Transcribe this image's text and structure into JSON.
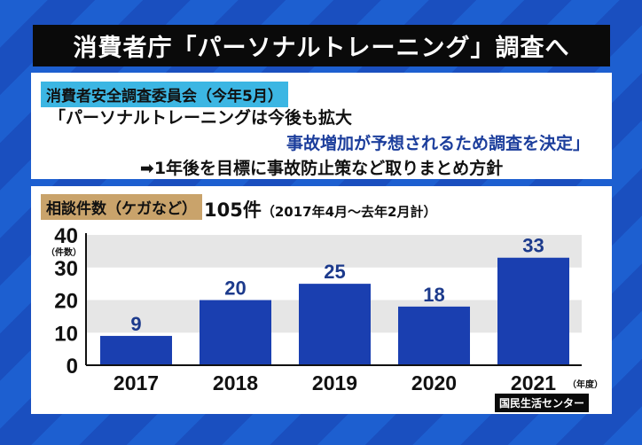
{
  "title": "消費者庁「パーソナルトレーニング」調査へ",
  "panel1": {
    "tag": "消費者安全調査委員会（今年5月）",
    "line1": "「パーソナルトレーニングは今後も拡大",
    "line2": "事故増加が予想されるため調査を決定」",
    "line3": "➡1年後を目標に事故防止策など取りまとめ方針"
  },
  "panel2": {
    "tag": "相談件数（ケガなど）",
    "total": "105件",
    "period": "（2017年4月～去年2月計）"
  },
  "source": "国民生活センター",
  "colors": {
    "bar": "#1a3fb0",
    "label": "#1c3a8c",
    "band": "#e6e6e6"
  },
  "chart_data": {
    "type": "bar",
    "categories": [
      "2017",
      "2018",
      "2019",
      "2020",
      "2021"
    ],
    "values": [
      9,
      20,
      25,
      18,
      33
    ],
    "ylabel": "（件数）",
    "xlabel": "（年度）",
    "ylim": [
      0,
      40
    ],
    "yticks": [
      "0",
      "10",
      "20",
      "30",
      "40"
    ],
    "grid": "alternating bands"
  }
}
